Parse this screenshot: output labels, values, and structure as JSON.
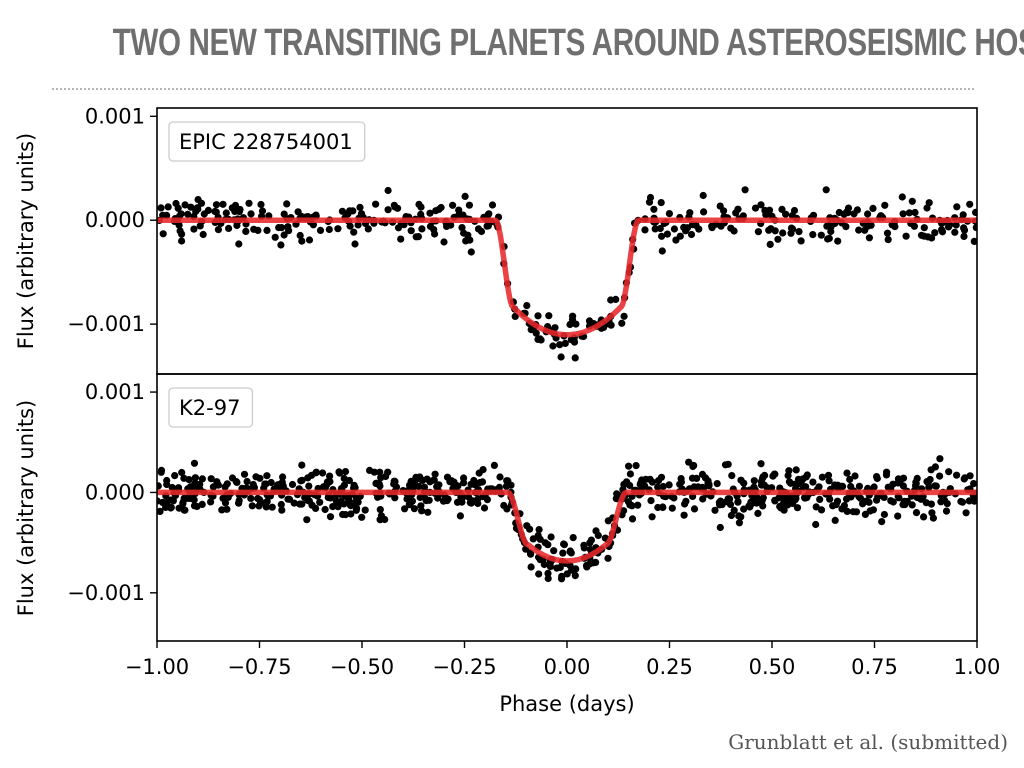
{
  "slide": {
    "title": "TWO NEW TRANSITING PLANETS AROUND ASTEROSEISMIC HOSTS",
    "citation": "Grunblatt et al. (submitted)"
  },
  "chart_data": [
    {
      "type": "scatter",
      "label": "EPIC 228754001",
      "xlabel": "Phase (days)",
      "ylabel": "Flux (arbitrary units)",
      "xlim": [
        -1.0,
        1.0
      ],
      "ylim": [
        -0.00148,
        0.00108
      ],
      "yticks": [
        0.001,
        0.0,
        -0.001
      ],
      "ytick_labels": [
        "0.001",
        "0.000",
        "−0.001"
      ],
      "model": {
        "depth": -0.00105,
        "t1": 0.175,
        "t2": 0.13,
        "color": "#e8282b"
      },
      "scatter": {
        "n": 420,
        "sigma": 0.00017,
        "seed": 7,
        "color": "#000000"
      }
    },
    {
      "type": "scatter",
      "label": "K2-97",
      "xlabel": "Phase (days)",
      "ylabel": "Flux (arbitrary units)",
      "xlim": [
        -1.0,
        1.0
      ],
      "ylim": [
        -0.00148,
        0.00118
      ],
      "yticks": [
        0.001,
        0.0,
        -0.001
      ],
      "ytick_labels": [
        "0.001",
        "0.000",
        "−0.001"
      ],
      "xticks": [
        -1.0,
        -0.75,
        -0.5,
        -0.25,
        0.0,
        0.25,
        0.5,
        0.75,
        1.0
      ],
      "xtick_labels": [
        "−1.00",
        "−0.75",
        "−0.50",
        "−0.25",
        "0.00",
        "0.25",
        "0.50",
        "0.75",
        "1.00"
      ],
      "model": {
        "depth": -0.00065,
        "t1": 0.145,
        "t2": 0.095,
        "color": "#e8282b"
      },
      "scatter": {
        "n": 760,
        "sigma": 0.0002,
        "seed": 19,
        "color": "#000000"
      }
    }
  ]
}
